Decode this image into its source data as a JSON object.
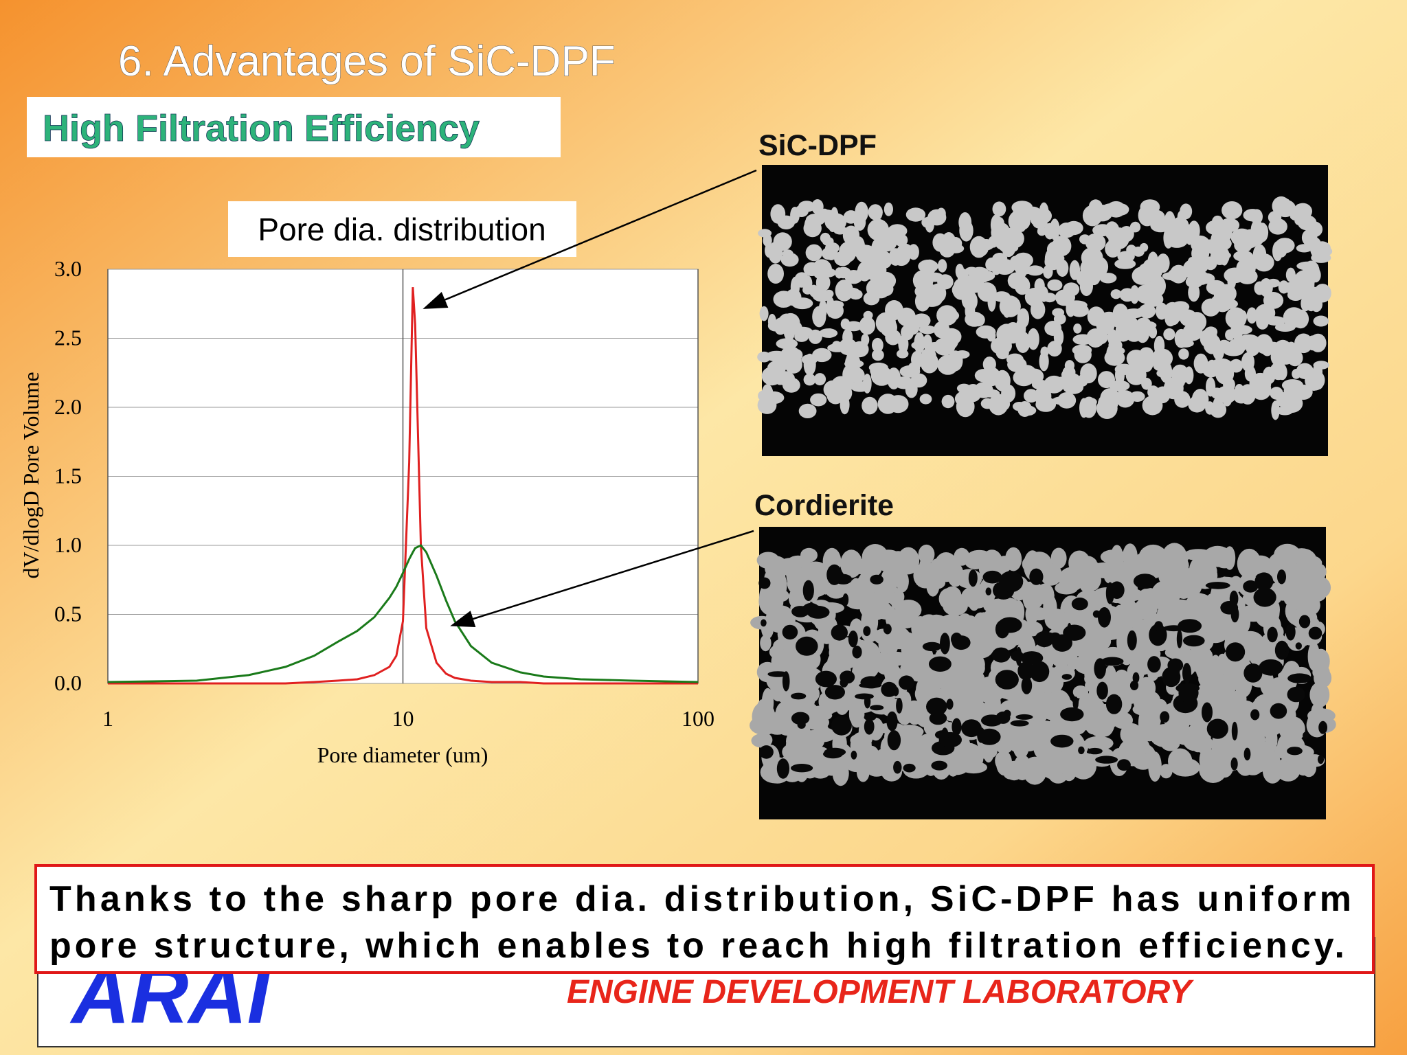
{
  "header": {
    "title": "6. Advantages of SiC-DPF",
    "subtitle": "High Filtration Efficiency"
  },
  "chart_data": {
    "type": "line",
    "title": "Pore dia. distribution",
    "x_label": "Pore diameter (um)",
    "y_label": "dV/dlogD Pore Volume",
    "x": [
      1,
      2,
      3,
      4,
      5,
      6,
      7,
      8,
      9,
      9.5,
      10,
      10.5,
      10.8,
      11,
      11.5,
      12,
      13,
      14,
      15,
      17,
      20,
      25,
      30,
      40,
      60,
      100
    ],
    "series": [
      {
        "name": "SiC-DPF",
        "color": "#e02020",
        "values": [
          0,
          0,
          0,
          0,
          0.01,
          0.02,
          0.03,
          0.06,
          0.12,
          0.2,
          0.45,
          1.6,
          2.87,
          2.6,
          1.0,
          0.4,
          0.15,
          0.07,
          0.04,
          0.02,
          0.01,
          0.01,
          0,
          0,
          0,
          0
        ]
      },
      {
        "name": "Cordierite",
        "color": "#1a7a1a",
        "values": [
          0.01,
          0.02,
          0.06,
          0.12,
          0.2,
          0.3,
          0.38,
          0.48,
          0.62,
          0.7,
          0.8,
          0.9,
          0.95,
          0.98,
          1.0,
          0.95,
          0.78,
          0.6,
          0.45,
          0.27,
          0.15,
          0.08,
          0.05,
          0.03,
          0.02,
          0.01
        ]
      }
    ],
    "x_scale": "log",
    "xlim": [
      1,
      100
    ],
    "xticks": [
      1,
      10,
      100
    ],
    "ylim": [
      0,
      3
    ],
    "yticks": [
      {
        "value": 0,
        "label": "0.0"
      },
      {
        "value": 0.5,
        "label": "0.5"
      },
      {
        "value": 1,
        "label": "1.0"
      },
      {
        "value": 1.5,
        "label": "1.5"
      },
      {
        "value": 2,
        "label": "2.0"
      },
      {
        "value": 2.5,
        "label": "2.5"
      },
      {
        "value": 3,
        "label": "3.0"
      }
    ],
    "grid": true
  },
  "callout": {
    "lines": [
      "Thanks to the sharp pore dia. distribution, SiC-DPF has uniform",
      "pore structure, which enables to reach high filtration efficiency."
    ]
  },
  "footer": {
    "logo": "ARAI",
    "lab": "ENGINE DEVELOPMENT LABORATORY"
  }
}
